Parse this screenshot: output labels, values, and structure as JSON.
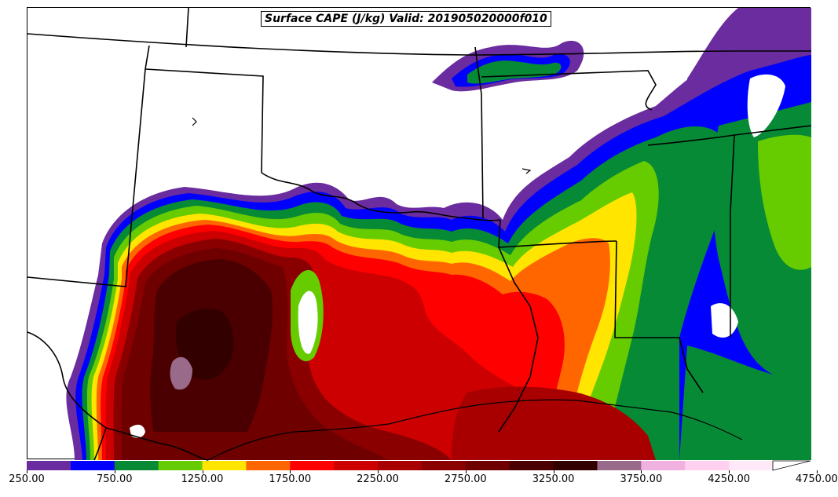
{
  "title": "Surface CAPE (J/kg) Valid: 201905020000f010",
  "colorbar": {
    "levels": [
      250,
      500,
      750,
      1000,
      1250,
      1500,
      1750,
      2000,
      2250,
      2500,
      2750,
      3000,
      3250,
      3500,
      3750,
      4000,
      4250,
      4500,
      4750
    ],
    "colors": [
      "#6a2c9e",
      "#0000ff",
      "#078a36",
      "#66cc00",
      "#ffe500",
      "#ff6600",
      "#ff0000",
      "#cc0000",
      "#a80000",
      "#8a0000",
      "#6e0000",
      "#4a0000",
      "#330000",
      "#9a6a8a",
      "#f0b0e0",
      "#ffd0f0",
      "#ffe8f8",
      "#ffffff"
    ],
    "tick_labels": [
      "250.00",
      "750.00",
      "1250.00",
      "1750.00",
      "2250.00",
      "2750.00",
      "3250.00",
      "3750.00",
      "4250.00",
      "4750.00"
    ]
  }
}
